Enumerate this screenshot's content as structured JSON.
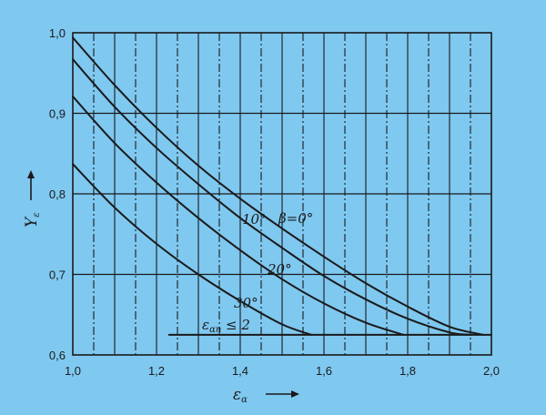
{
  "chart_data": {
    "type": "line",
    "xlabel": "εα",
    "ylabel": "Yε",
    "xlim": [
      1.0,
      2.0
    ],
    "ylim": [
      0.6,
      1.0
    ],
    "x_ticks": [
      "1,0",
      "1,2",
      "1,4",
      "1,6",
      "1,8",
      "2,0"
    ],
    "y_ticks": [
      "0,6",
      "0,7",
      "0,8",
      "0,9",
      "1,0"
    ],
    "grid": "horizontal solid at 0.1 steps; vertical solid at 0.1 steps with dash-dot lines at intermediate positions",
    "series": [
      {
        "name": "β=0°",
        "x": [
          1.0,
          1.1,
          1.2,
          1.3,
          1.4,
          1.5,
          1.6,
          1.7,
          1.8,
          1.9,
          1.98
        ],
        "y": [
          0.994,
          0.935,
          0.882,
          0.835,
          0.794,
          0.757,
          0.722,
          0.689,
          0.66,
          0.635,
          0.625
        ]
      },
      {
        "name": "10°",
        "x": [
          1.0,
          1.1,
          1.2,
          1.3,
          1.4,
          1.5,
          1.6,
          1.7,
          1.8,
          1.9,
          1.95
        ],
        "y": [
          0.967,
          0.908,
          0.857,
          0.812,
          0.77,
          0.733,
          0.698,
          0.669,
          0.645,
          0.628,
          0.625
        ]
      },
      {
        "name": "20°",
        "x": [
          1.0,
          1.1,
          1.2,
          1.3,
          1.4,
          1.5,
          1.6,
          1.7,
          1.79
        ],
        "y": [
          0.921,
          0.863,
          0.814,
          0.77,
          0.73,
          0.694,
          0.664,
          0.64,
          0.625
        ]
      },
      {
        "name": "30°",
        "x": [
          1.0,
          1.1,
          1.2,
          1.3,
          1.4,
          1.5,
          1.57
        ],
        "y": [
          0.837,
          0.783,
          0.738,
          0.7,
          0.667,
          0.638,
          0.625
        ]
      },
      {
        "name": "εαn ≤ 2",
        "x": [
          1.23,
          2.0
        ],
        "y": [
          0.625,
          0.625
        ]
      }
    ]
  },
  "labels": {
    "x_title_main": "ε",
    "x_title_sub": "α",
    "y_title_main": "Y",
    "y_title_sub": "ε",
    "beta0": "β=0°",
    "deg10": "10°",
    "deg20": "20°",
    "deg30": "30°",
    "ean_main": "ε",
    "ean_sub": "αn",
    "ean_rest": " ≤ 2"
  },
  "colors": {
    "background": "#7fc8f0",
    "ink": "#1a1a1a"
  }
}
